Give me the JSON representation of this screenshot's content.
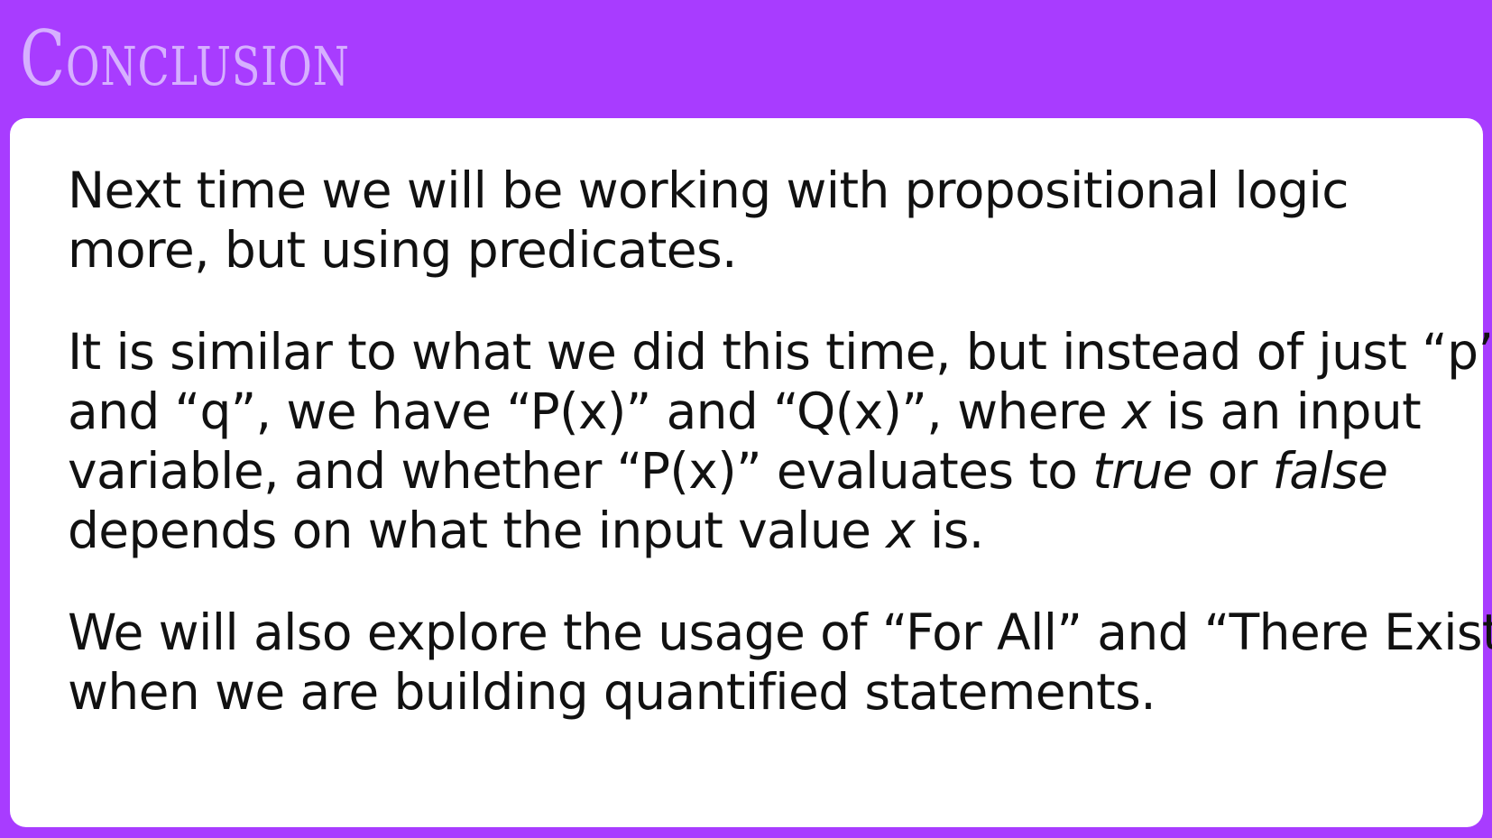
{
  "slide": {
    "title": "Conclusion",
    "paragraphs": [
      {
        "lines": [
          "Next time we will be working with propositional logic",
          "more, but using predicates."
        ]
      },
      {
        "lines": [
          {
            "a": "It is similar to what we did this time, but instead of just “p”"
          },
          {
            "a": "and “q”, we have “P(x)” and “Q(x)”, where ",
            "b": "x",
            "c": " is an input"
          },
          {
            "a": "variable, and whether “P(x)” evaluates to ",
            "b": "true",
            "c": " or ",
            "d": "false"
          },
          {
            "a": "depends on what the input value ",
            "b": "x",
            "c": " is."
          }
        ]
      },
      {
        "lines": [
          "We will also explore the usage of “For All” and “There Exists”",
          "when we are building quantified statements."
        ]
      }
    ]
  },
  "colors": {
    "background": "#a83cff",
    "title": "#d6b0ff",
    "card": "#ffffff",
    "text": "#111111"
  }
}
